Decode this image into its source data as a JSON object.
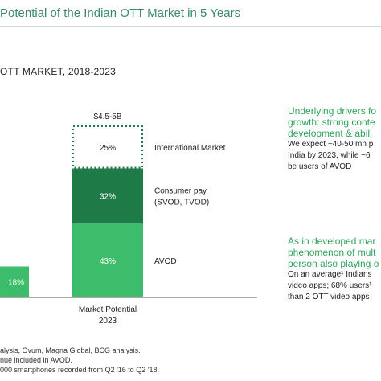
{
  "header": {
    "title": "Potential of the Indian OTT Market in 5 Years",
    "chart_title": "OTT MARKET, 2018-2023"
  },
  "chart_data": {
    "type": "bar",
    "stacked": true,
    "title": "OTT MARKET, 2018-2023",
    "categories": [
      "",
      "Market Potential 2023"
    ],
    "category_lines": [
      [
        ""
      ],
      [
        "Market Potential",
        "2023"
      ]
    ],
    "total_labels": [
      "",
      "$4.5-5B"
    ],
    "series": [
      {
        "name": "AVOD",
        "values": [
          18,
          43
        ],
        "labels": [
          "18%",
          "43%"
        ],
        "color": "#3dbd6b"
      },
      {
        "name": "Consumer pay (SVOD, TVOD)",
        "name_lines": [
          "Consumer pay",
          "(SVOD, TVOD)"
        ],
        "values": [
          0,
          32
        ],
        "labels": [
          "",
          "32%"
        ],
        "color": "#1e7a47"
      },
      {
        "name": "International Market",
        "values": [
          0,
          25
        ],
        "labels": [
          "",
          "25%"
        ],
        "color": "#ffffff",
        "border": "#1e7a47",
        "dotted": true
      }
    ],
    "ylim": [
      0,
      100
    ],
    "grid": false,
    "legend": "right"
  },
  "drivers": [
    {
      "heading_lines": [
        "Underlying drivers fo",
        "growth: strong conte",
        "development & abili"
      ],
      "body_lines": [
        "We expect ~40-50 mn p",
        "India by 2023, while ~6",
        "be users of AVOD"
      ]
    },
    {
      "heading_lines": [
        "As in developed mar",
        "phenomenon of mult",
        "person also playing o"
      ],
      "body_lines": [
        "On an average¹ Indians",
        "video apps; 68% users¹",
        "than 2 OTT video apps"
      ]
    }
  ],
  "notes": [
    "alysis, Ovum, Magna Global, BCG analysis.",
    "nue included in AVOD.",
    "000 smartphones recorded from Q2 '16 to Q2 '18."
  ]
}
